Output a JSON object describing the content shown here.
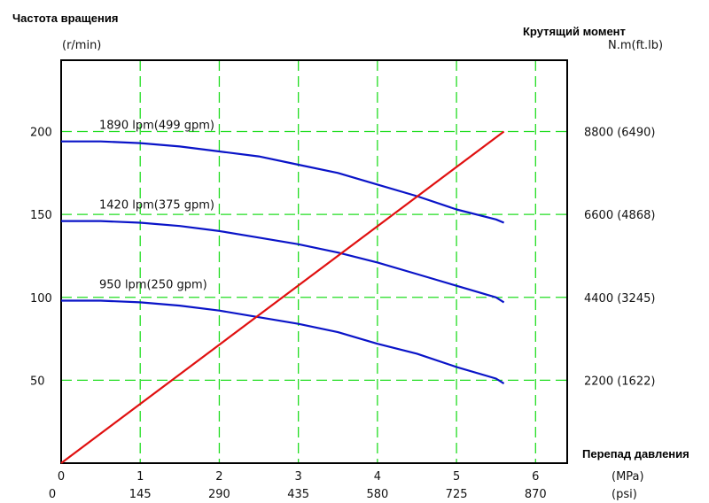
{
  "chart_data": {
    "type": "line",
    "left_axis": {
      "title": "Частота вращения",
      "unit": "(r/min)",
      "ticks": [
        50,
        100,
        150,
        200
      ],
      "range": [
        0,
        243
      ]
    },
    "right_axis": {
      "title": "Крутящий момент",
      "unit": "N.m(ft.lb)",
      "ticks": [
        "2200 (1622)",
        "4400 (3245)",
        "6600 (4868)",
        "8800 (6490)"
      ],
      "tick_values": [
        2200,
        4400,
        6600,
        8800
      ],
      "range": [
        0,
        10692
      ]
    },
    "x_axis": {
      "title": "Перепад давления",
      "unit_primary": "(MPa)",
      "unit_secondary": "(psi)",
      "ticks_primary": [
        "0",
        "1",
        "2",
        "3",
        "4",
        "5",
        "6"
      ],
      "ticks_secondary": [
        "0",
        "145",
        "290",
        "435",
        "580",
        "725",
        "870"
      ],
      "range": [
        0,
        6.4
      ]
    },
    "grid": true,
    "series": [
      {
        "name": "1890 lpm(499 gpm)",
        "axis": "left",
        "color": "#0a14c8",
        "x": [
          0,
          0.5,
          1,
          1.5,
          2,
          2.5,
          3,
          3.5,
          4,
          4.5,
          5,
          5.5,
          5.6
        ],
        "y": [
          194,
          194,
          193,
          191,
          188,
          185,
          180,
          175,
          168,
          161,
          153,
          147,
          145
        ]
      },
      {
        "name": "1420 lpm(375 gpm)",
        "axis": "left",
        "color": "#0a14c8",
        "x": [
          0,
          0.5,
          1,
          1.5,
          2,
          2.5,
          3,
          3.5,
          4,
          4.5,
          5,
          5.5,
          5.6
        ],
        "y": [
          146,
          146,
          145,
          143,
          140,
          136,
          132,
          127,
          121,
          114,
          107,
          100,
          97
        ]
      },
      {
        "name": "950 lpm(250 gpm)",
        "axis": "left",
        "color": "#0a14c8",
        "x": [
          0,
          0.5,
          1,
          1.5,
          2,
          2.5,
          3,
          3.5,
          4,
          4.5,
          5,
          5.5,
          5.6
        ],
        "y": [
          98,
          98,
          97,
          95,
          92,
          88,
          84,
          79,
          72,
          66,
          58,
          51,
          48
        ]
      },
      {
        "name": "",
        "axis": "right",
        "color": "#e01010",
        "x": [
          0,
          5.6
        ],
        "y": [
          0,
          8800
        ]
      }
    ]
  }
}
